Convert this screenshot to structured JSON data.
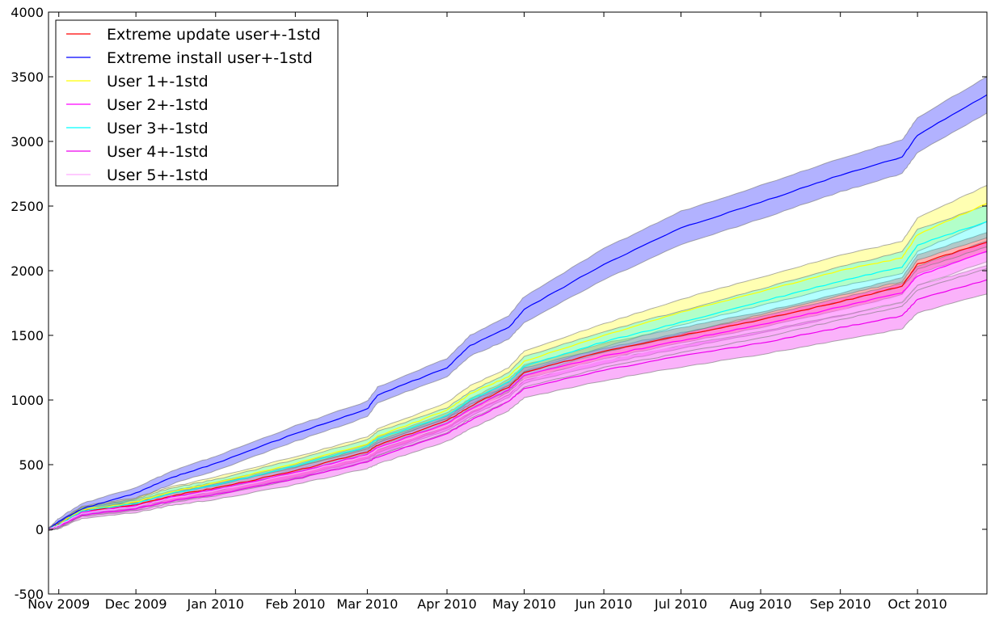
{
  "chart_data": {
    "type": "line",
    "title": "",
    "xlabel": "",
    "ylabel": "",
    "x_ticks": [
      "Nov 2009",
      "Dec 2009",
      "Jan 2010",
      "Feb 2010",
      "Mar 2010",
      "Apr 2010",
      "May 2010",
      "Jun 2010",
      "Jul 2010",
      "Aug 2010",
      "Sep 2010",
      "Oct 2010"
    ],
    "ylim": [
      -500,
      4000
    ],
    "y_ticks": [
      -500,
      0,
      500,
      1000,
      1500,
      2000,
      2500,
      3000,
      3500,
      4000
    ],
    "grid": false,
    "legend_position": "top-left",
    "x": [
      "2009-10-28",
      "2009-11-01",
      "2009-11-10",
      "2009-12-01",
      "2009-12-15",
      "2010-01-01",
      "2010-02-01",
      "2010-03-01",
      "2010-03-05",
      "2010-04-01",
      "2010-04-10",
      "2010-04-25",
      "2010-05-01",
      "2010-06-01",
      "2010-07-01",
      "2010-08-01",
      "2010-09-01",
      "2010-09-25",
      "2010-10-01",
      "2010-10-28"
    ],
    "series": [
      {
        "name": "Extreme update user+-1std",
        "color": "#ff0000",
        "values": [
          0,
          40,
          140,
          190,
          260,
          320,
          450,
          600,
          650,
          840,
          950,
          1100,
          1210,
          1380,
          1500,
          1620,
          1760,
          1880,
          2050,
          2220
        ],
        "std": [
          10,
          20,
          30,
          35,
          40,
          45,
          50,
          55,
          60,
          60,
          60,
          60,
          60,
          60,
          60,
          60,
          65,
          65,
          70,
          75
        ]
      },
      {
        "name": "Extreme install user+-1std",
        "color": "#0000ff",
        "values": [
          0,
          60,
          160,
          280,
          400,
          510,
          740,
          930,
          1040,
          1250,
          1420,
          1560,
          1700,
          2050,
          2330,
          2530,
          2740,
          2880,
          3050,
          3360
        ],
        "std": [
          10,
          25,
          40,
          45,
          50,
          55,
          60,
          60,
          60,
          70,
          80,
          90,
          100,
          120,
          130,
          130,
          130,
          130,
          135,
          140
        ]
      },
      {
        "name": "User 1+-1std",
        "color": "#ffff00",
        "values": [
          0,
          40,
          150,
          210,
          290,
          360,
          510,
          660,
          720,
          920,
          1050,
          1180,
          1300,
          1500,
          1680,
          1840,
          2000,
          2100,
          2280,
          2520
        ],
        "std": [
          10,
          20,
          30,
          35,
          40,
          45,
          50,
          55,
          55,
          60,
          60,
          70,
          80,
          90,
          100,
          110,
          120,
          125,
          130,
          140
        ]
      },
      {
        "name": "User 2+-1std",
        "color": "#ff00ff",
        "values": [
          0,
          30,
          130,
          180,
          250,
          310,
          440,
          580,
          630,
          820,
          930,
          1080,
          1190,
          1340,
          1460,
          1580,
          1720,
          1830,
          1960,
          2150
        ],
        "std": [
          10,
          20,
          25,
          30,
          35,
          40,
          45,
          50,
          55,
          55,
          60,
          60,
          60,
          60,
          60,
          65,
          70,
          70,
          75,
          80
        ]
      },
      {
        "name": "User 3+-1std",
        "color": "#00ffff",
        "values": [
          0,
          35,
          140,
          200,
          280,
          340,
          490,
          640,
          700,
          880,
          1000,
          1140,
          1260,
          1450,
          1600,
          1760,
          1920,
          2030,
          2200,
          2380
        ],
        "std": [
          10,
          20,
          30,
          35,
          40,
          45,
          50,
          55,
          55,
          60,
          65,
          70,
          75,
          80,
          90,
          100,
          110,
          115,
          120,
          125
        ]
      },
      {
        "name": "User 4+-1std",
        "color": "#ee00ee",
        "values": [
          0,
          25,
          110,
          160,
          220,
          270,
          390,
          520,
          560,
          740,
          840,
          990,
          1090,
          1230,
          1340,
          1440,
          1560,
          1650,
          1780,
          1930
        ],
        "std": [
          10,
          20,
          25,
          30,
          35,
          40,
          45,
          50,
          55,
          60,
          65,
          70,
          75,
          80,
          85,
          90,
          95,
          100,
          105,
          110
        ]
      },
      {
        "name": "User 5+-1std",
        "color": "#ffaaff",
        "values": [
          0,
          30,
          125,
          175,
          240,
          300,
          430,
          570,
          620,
          800,
          910,
          1050,
          1160,
          1310,
          1430,
          1550,
          1690,
          1800,
          1930,
          2100
        ],
        "std": [
          10,
          20,
          25,
          30,
          35,
          40,
          45,
          50,
          50,
          55,
          55,
          60,
          60,
          60,
          65,
          70,
          70,
          75,
          80,
          85
        ]
      }
    ]
  }
}
